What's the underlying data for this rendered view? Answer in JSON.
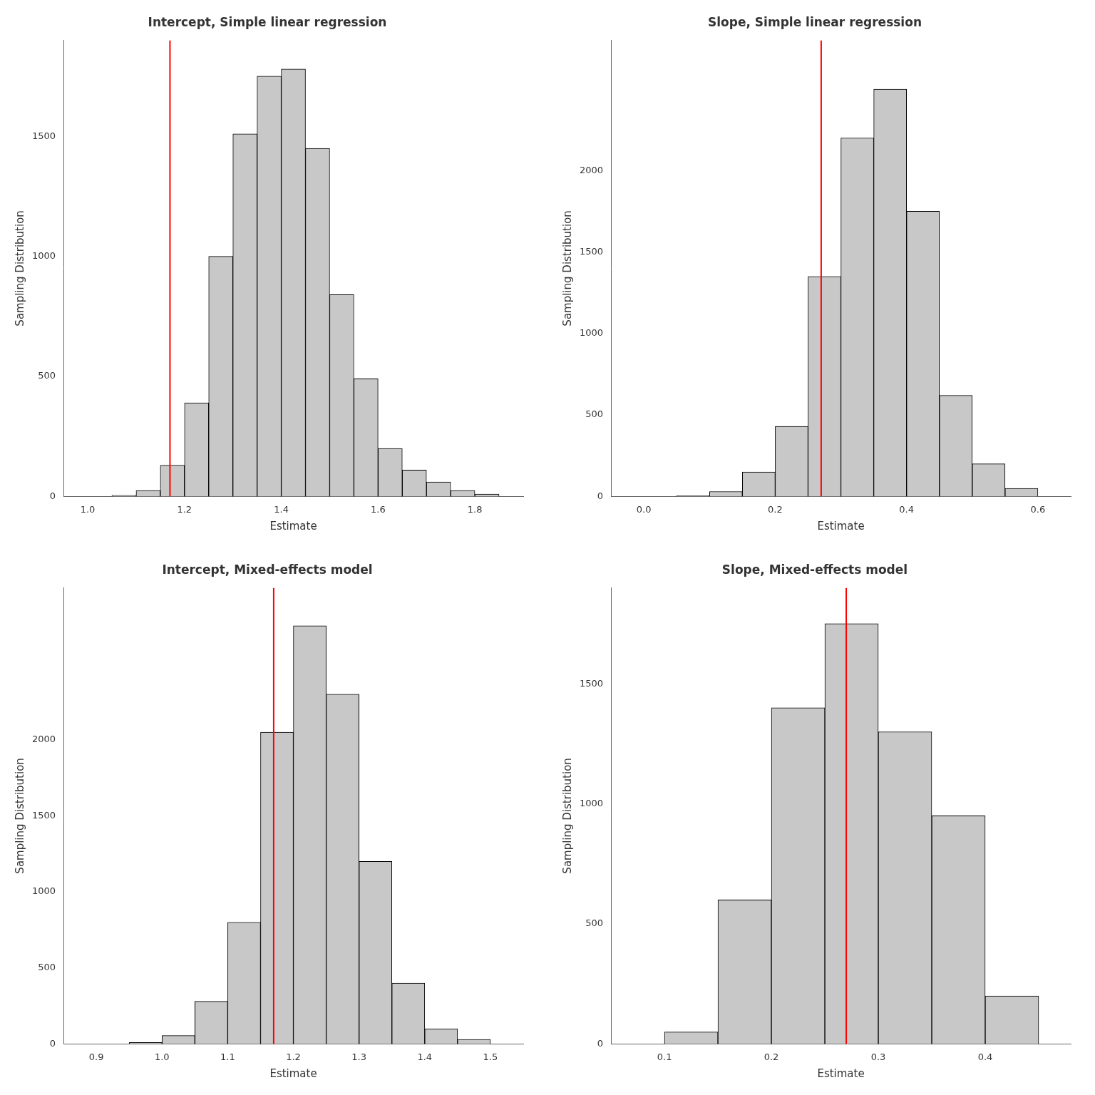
{
  "chart_data": [
    {
      "type": "histogram",
      "title": "Intercept, Simple linear regression",
      "x_label": "Estimate",
      "y_label": "Sampling Distribution",
      "bins": [
        1.05,
        1.1,
        1.15,
        1.2,
        1.25,
        1.3,
        1.35,
        1.4,
        1.45,
        1.5,
        1.55,
        1.6,
        1.65,
        1.7,
        1.75,
        1.8,
        1.85
      ],
      "values": [
        5,
        25,
        130,
        390,
        1000,
        1510,
        1750,
        1780,
        1450,
        840,
        490,
        200,
        110,
        60,
        25,
        10
      ],
      "color": "#c8c8c8",
      "xlim": [
        0.95,
        1.9
      ],
      "ylim": [
        0,
        1900
      ],
      "xticks": [
        {
          "value": 1.0,
          "label": "1.0"
        },
        1.2,
        1.4,
        1.6,
        1.8
      ],
      "yticks": [
        0,
        500,
        1000,
        1500
      ],
      "grid": false,
      "vline": {
        "x": 1.17,
        "color": "#ff0000"
      }
    },
    {
      "type": "histogram",
      "title": "Slope, Simple linear regression",
      "x_label": "Estimate",
      "y_label": "Sampling Distribution",
      "bins": [
        0.05,
        0.1,
        0.15,
        0.2,
        0.25,
        0.3,
        0.35,
        0.4,
        0.45,
        0.5,
        0.55,
        0.6
      ],
      "values": [
        5,
        30,
        150,
        430,
        1350,
        2200,
        2500,
        1750,
        620,
        200,
        50
      ],
      "color": "#c8c8c8",
      "xlim": [
        -0.05,
        0.65
      ],
      "ylim": [
        0,
        2800
      ],
      "xticks": [
        {
          "value": 0.0,
          "label": "0.0"
        },
        0.2,
        0.4,
        0.6
      ],
      "yticks": [
        0,
        500,
        1000,
        1500,
        2000
      ],
      "grid": false,
      "vline": {
        "x": 0.27,
        "color": "#ff0000"
      }
    },
    {
      "type": "histogram",
      "title": "Intercept, Mixed-effects model",
      "x_label": "Estimate",
      "y_label": "Sampling Distribution",
      "bins": [
        0.95,
        1.0,
        1.05,
        1.1,
        1.15,
        1.2,
        1.25,
        1.3,
        1.35,
        1.4,
        1.45,
        1.5
      ],
      "values": [
        10,
        55,
        280,
        800,
        2050,
        2750,
        2300,
        1200,
        400,
        100,
        30
      ],
      "color": "#c8c8c8",
      "xlim": [
        0.85,
        1.55
      ],
      "ylim": [
        0,
        3000
      ],
      "xticks": [
        0.9,
        {
          "value": 1.0,
          "label": "1.0"
        },
        1.1,
        1.2,
        1.3,
        1.4,
        1.5
      ],
      "yticks": [
        0,
        500,
        1000,
        1500,
        2000
      ],
      "grid": false,
      "vline": {
        "x": 1.17,
        "color": "#ff0000"
      }
    },
    {
      "type": "histogram",
      "title": "Slope, Mixed-effects model",
      "x_label": "Estimate",
      "y_label": "Sampling Distribution",
      "bins": [
        0.1,
        0.15,
        0.2,
        0.25,
        0.3,
        0.35,
        0.4,
        0.45
      ],
      "values": [
        50,
        600,
        1400,
        1750,
        1300,
        950,
        200
      ],
      "color": "#c8c8c8",
      "xlim": [
        0.05,
        0.48
      ],
      "ylim": [
        0,
        1900
      ],
      "xticks": [
        0.1,
        0.2,
        0.3,
        0.4
      ],
      "yticks": [
        0,
        500,
        1000,
        1500
      ],
      "grid": false,
      "vline": {
        "x": 0.27,
        "color": "#ff0000"
      }
    }
  ]
}
